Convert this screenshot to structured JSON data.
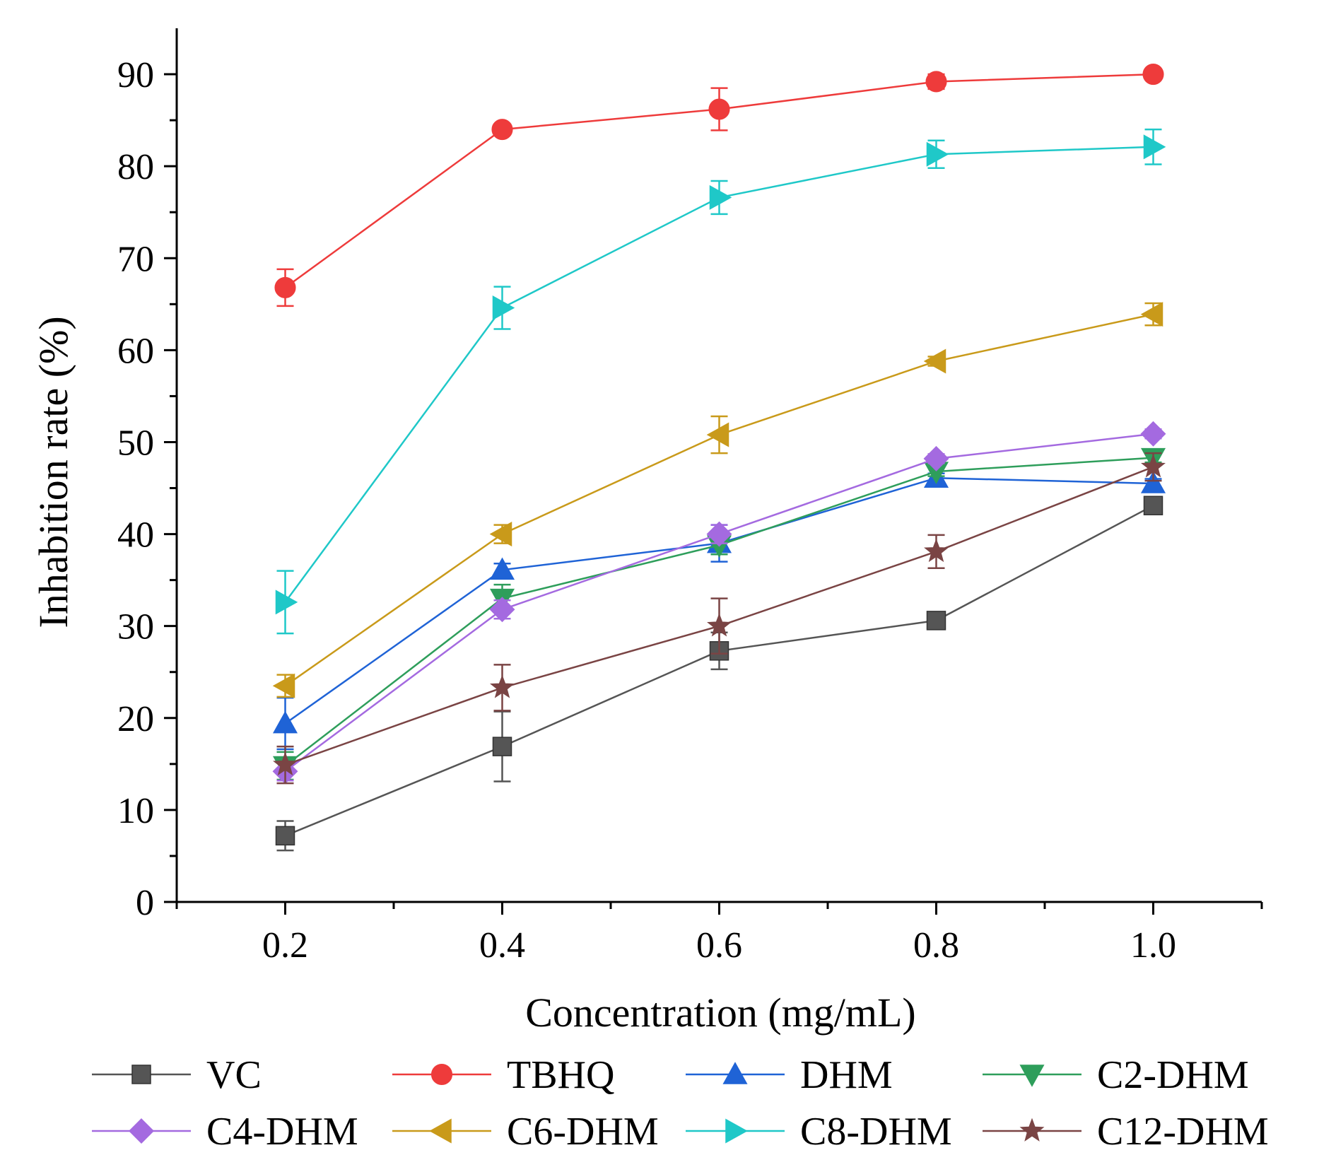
{
  "chart_data": {
    "type": "line",
    "title": "",
    "xlabel": "Concentration (mg/mL)",
    "ylabel": "Inhabition rate (%)",
    "x": [
      0.2,
      0.4,
      0.6,
      0.8,
      1.0
    ],
    "x_tick_labels": [
      "0.2",
      "0.4",
      "0.6",
      "0.8",
      "1.0"
    ],
    "y_tick_labels": [
      "0",
      "10",
      "20",
      "30",
      "40",
      "50",
      "60",
      "70",
      "80",
      "90"
    ],
    "xlim": [
      0.1,
      1.1
    ],
    "ylim": [
      0,
      95
    ],
    "grid": false,
    "legend_position": "bottom",
    "series": [
      {
        "name": "VC",
        "color": "#555555",
        "marker": "square",
        "values": [
          7.2,
          16.9,
          27.3,
          30.6,
          43.1
        ],
        "errors": [
          1.6,
          3.8,
          2.0,
          0.5,
          0.9
        ]
      },
      {
        "name": "TBHQ",
        "color": "#ee3b3b",
        "marker": "circle",
        "values": [
          66.8,
          84.0,
          86.2,
          89.2,
          90.0
        ],
        "errors": [
          2.0,
          0.5,
          2.3,
          0.8,
          0.6
        ]
      },
      {
        "name": "DHM",
        "color": "#1f63d6",
        "marker": "triangle-up",
        "values": [
          19.4,
          36.1,
          39.0,
          46.1,
          45.5
        ],
        "errors": [
          2.8,
          0.7,
          2.0,
          0.5,
          0.5
        ]
      },
      {
        "name": "C2-DHM",
        "color": "#2e9e5b",
        "marker": "triangle-down",
        "values": [
          14.8,
          33.0,
          38.8,
          46.8,
          48.3
        ],
        "errors": [
          1.5,
          1.5,
          1.0,
          0.5,
          0.5
        ]
      },
      {
        "name": "C4-DHM",
        "color": "#a46ae0",
        "marker": "diamond",
        "values": [
          14.2,
          31.8,
          40.0,
          48.2,
          50.9
        ],
        "errors": [
          1.0,
          1.0,
          1.0,
          0.5,
          0.5
        ]
      },
      {
        "name": "C6-DHM",
        "color": "#c99a1a",
        "marker": "triangle-left",
        "values": [
          23.5,
          40.0,
          50.8,
          58.8,
          63.9
        ],
        "errors": [
          1.2,
          1.0,
          2.0,
          0.5,
          1.2
        ]
      },
      {
        "name": "C8-DHM",
        "color": "#1fc8c8",
        "marker": "triangle-right",
        "values": [
          32.6,
          64.6,
          76.6,
          81.3,
          82.1
        ],
        "errors": [
          3.4,
          2.3,
          1.8,
          1.5,
          1.9
        ]
      },
      {
        "name": "C12-DHM",
        "color": "#7a4444",
        "marker": "star",
        "values": [
          14.9,
          23.3,
          30.0,
          38.1,
          47.3
        ],
        "errors": [
          2.0,
          2.5,
          3.0,
          1.8,
          1.5
        ]
      }
    ]
  }
}
